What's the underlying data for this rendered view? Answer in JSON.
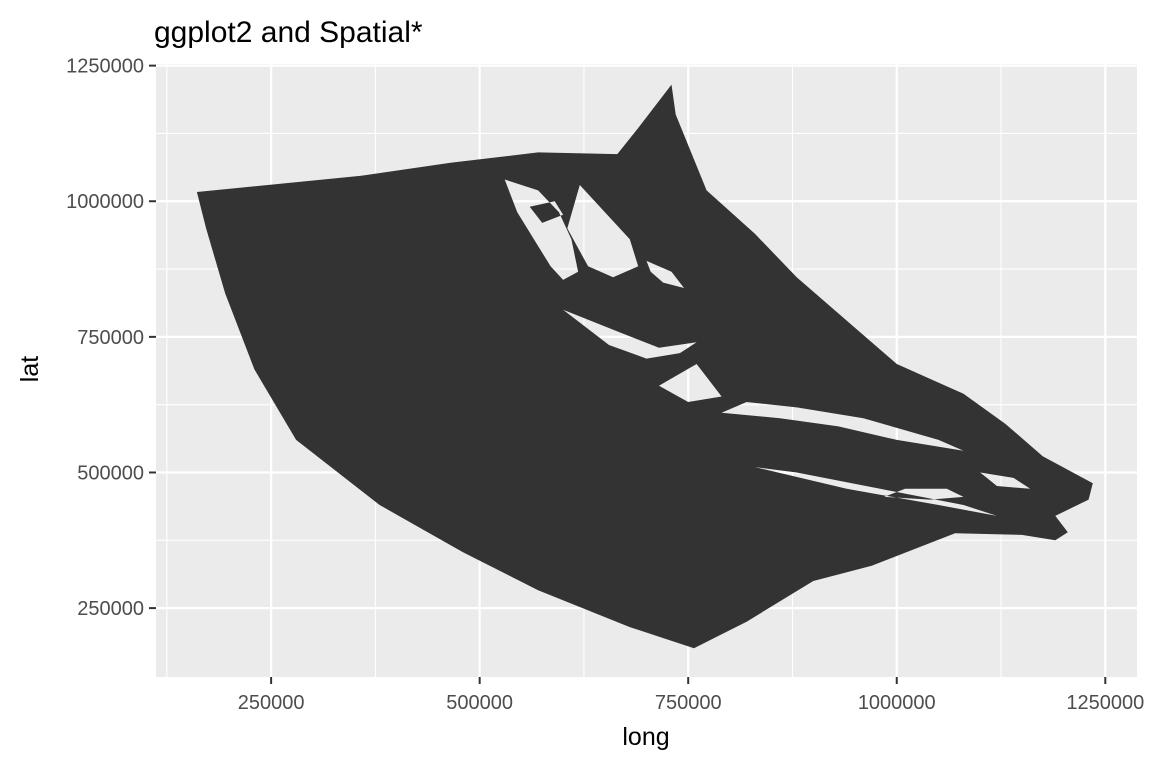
{
  "chart_data": {
    "type": "map",
    "title": "ggplot2 and Spatial*",
    "xlabel": "long",
    "ylabel": "lat",
    "xlim": [
      112000,
      1288000
    ],
    "ylim": [
      123000,
      1253000
    ],
    "x_ticks": [
      250000,
      500000,
      750000,
      1000000,
      1250000
    ],
    "y_ticks": [
      250000,
      500000,
      750000,
      1000000,
      1250000
    ],
    "x_tick_labels": [
      "250000",
      "500000",
      "750000",
      "1000000",
      "1250000"
    ],
    "y_tick_labels": [
      "250000",
      "500000",
      "750000",
      "1000000",
      "1250000"
    ],
    "grid": true,
    "panel_color": "#ebebeb",
    "grid_color": "#ffffff",
    "fill_color": "#333333",
    "polygon": [
      [
        161000,
        1017000
      ],
      [
        358000,
        1047000
      ],
      [
        465000,
        1071000
      ],
      [
        570000,
        1090000
      ],
      [
        665000,
        1087000
      ],
      [
        690000,
        1135000
      ],
      [
        730000,
        1215000
      ],
      [
        735000,
        1160000
      ],
      [
        772000,
        1020000
      ],
      [
        830000,
        940000
      ],
      [
        880000,
        860000
      ],
      [
        940000,
        780000
      ],
      [
        1000000,
        700000
      ],
      [
        1080000,
        645000
      ],
      [
        1130000,
        590000
      ],
      [
        1175000,
        530000
      ],
      [
        1235000,
        480000
      ],
      [
        1230000,
        450000
      ],
      [
        1190000,
        420000
      ],
      [
        1205000,
        390000
      ],
      [
        1190000,
        375000
      ],
      [
        1150000,
        385000
      ],
      [
        1070000,
        388000
      ],
      [
        970000,
        328000
      ],
      [
        900000,
        300000
      ],
      [
        820000,
        225000
      ],
      [
        757000,
        176000
      ],
      [
        680000,
        215000
      ],
      [
        570000,
        283000
      ],
      [
        480000,
        353000
      ],
      [
        380000,
        440000
      ],
      [
        280000,
        560000
      ],
      [
        230000,
        690000
      ],
      [
        195000,
        830000
      ],
      [
        172000,
        950000
      ]
    ],
    "holes": [
      [
        [
          530000,
          1040000
        ],
        [
          570000,
          1020000
        ],
        [
          595000,
          980000
        ],
        [
          610000,
          930000
        ],
        [
          618000,
          870000
        ],
        [
          600000,
          855000
        ],
        [
          585000,
          880000
        ],
        [
          565000,
          930000
        ],
        [
          545000,
          980000
        ]
      ],
      [
        [
          620000,
          1030000
        ],
        [
          680000,
          930000
        ],
        [
          690000,
          880000
        ],
        [
          660000,
          860000
        ],
        [
          630000,
          880000
        ],
        [
          605000,
          950000
        ]
      ],
      [
        [
          600000,
          800000
        ],
        [
          665000,
          760000
        ],
        [
          715000,
          730000
        ],
        [
          760000,
          740000
        ],
        [
          740000,
          720000
        ],
        [
          700000,
          710000
        ],
        [
          655000,
          735000
        ]
      ],
      [
        [
          790000,
          610000
        ],
        [
          860000,
          600000
        ],
        [
          930000,
          585000
        ],
        [
          1000000,
          560000
        ],
        [
          1080000,
          540000
        ],
        [
          1050000,
          560000
        ],
        [
          960000,
          600000
        ],
        [
          880000,
          620000
        ],
        [
          820000,
          630000
        ]
      ],
      [
        [
          830000,
          510000
        ],
        [
          940000,
          470000
        ],
        [
          1050000,
          440000
        ],
        [
          1120000,
          420000
        ],
        [
          1080000,
          440000
        ],
        [
          980000,
          470000
        ],
        [
          880000,
          500000
        ]
      ],
      [
        [
          985000,
          455000
        ],
        [
          1010000,
          470000
        ],
        [
          1060000,
          470000
        ],
        [
          1080000,
          455000
        ],
        [
          1040000,
          450000
        ]
      ],
      [
        [
          700000,
          890000
        ],
        [
          730000,
          870000
        ],
        [
          745000,
          840000
        ],
        [
          720000,
          850000
        ],
        [
          705000,
          870000
        ]
      ],
      [
        [
          715000,
          660000
        ],
        [
          760000,
          700000
        ],
        [
          790000,
          640000
        ],
        [
          750000,
          630000
        ]
      ],
      [
        [
          560000,
          990000
        ],
        [
          590000,
          1000000
        ],
        [
          600000,
          975000
        ],
        [
          575000,
          960000
        ]
      ],
      [
        [
          1100000,
          500000
        ],
        [
          1140000,
          490000
        ],
        [
          1160000,
          470000
        ],
        [
          1120000,
          475000
        ]
      ]
    ]
  }
}
